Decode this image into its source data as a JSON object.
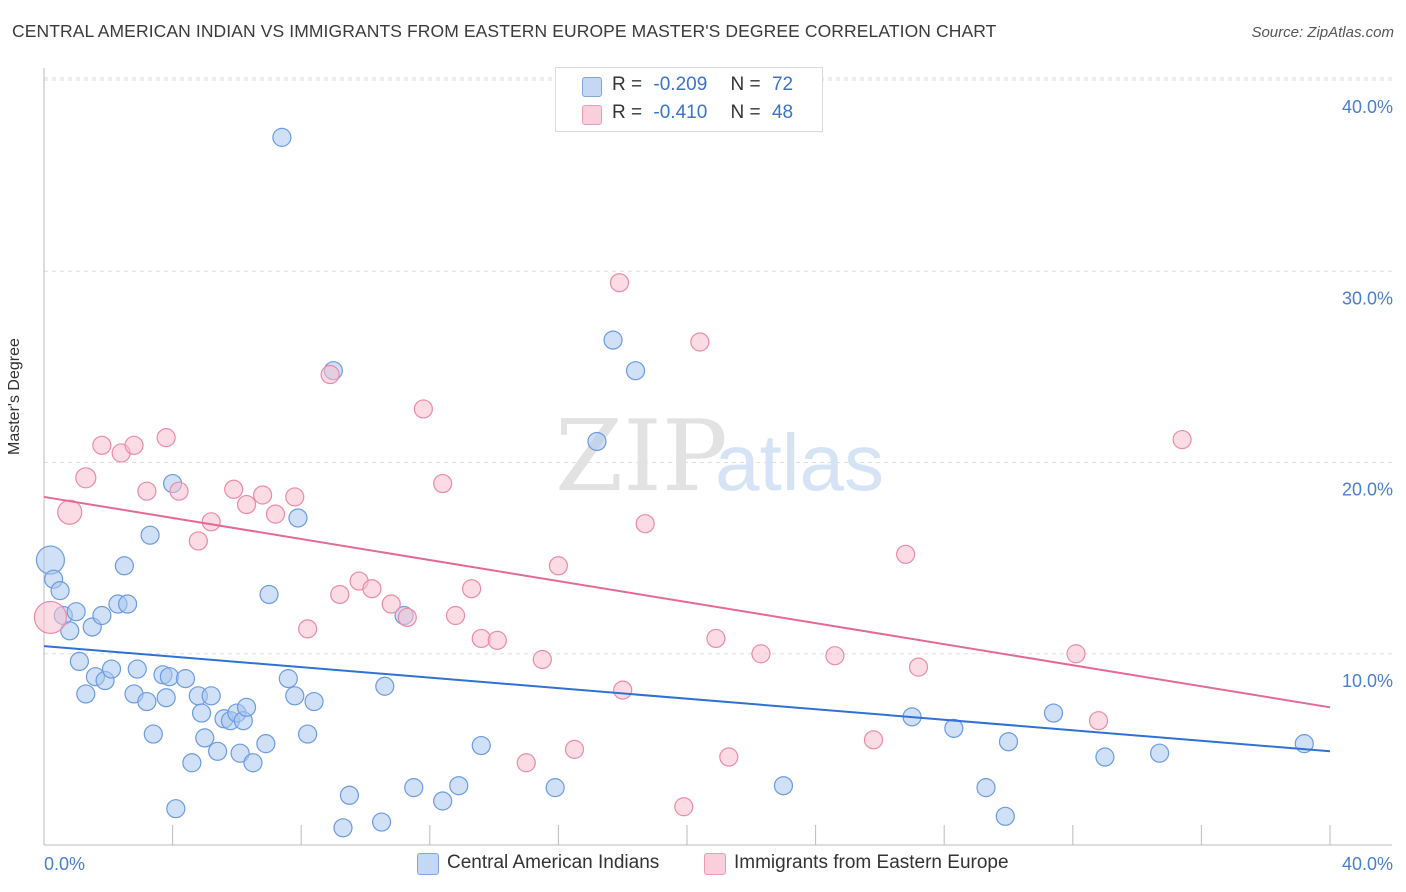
{
  "title": "CENTRAL AMERICAN INDIAN VS IMMIGRANTS FROM EASTERN EUROPE MASTER'S DEGREE CORRELATION CHART",
  "source": "Source: ZipAtlas.com",
  "watermark": {
    "zip": "ZIP",
    "atlas": "atlas"
  },
  "legend": {
    "r_label": "R =",
    "n_label": "N =",
    "rows": [
      {
        "r": "-0.209",
        "n": "72",
        "color": "#a9c7ef"
      },
      {
        "r": "-0.410",
        "n": "48",
        "color": "#f7bfd0"
      }
    ]
  },
  "bottom_legend": [
    {
      "label": "Central American Indians",
      "color": "#a9c7ef"
    },
    {
      "label": "Immigrants from Eastern Europe",
      "color": "#f7bfd0"
    }
  ],
  "colors": {
    "blue_fill": "#a9c7ef",
    "blue_stroke": "#6b9be0",
    "blue_line": "#2f72d3",
    "pink_fill": "#f7bfd0",
    "pink_stroke": "#ec8aa8",
    "pink_line": "#e46a92",
    "grid": "#dddddd",
    "axis": "#bbbbbb",
    "tick_text": "#4a7fd0"
  },
  "chart_data": {
    "type": "scatter",
    "title": "CENTRAL AMERICAN INDIAN VS IMMIGRANTS FROM EASTERN EUROPE MASTER'S DEGREE CORRELATION CHART",
    "xlabel": "",
    "ylabel": "Master's Degree",
    "xlim": [
      0,
      40
    ],
    "ylim": [
      0,
      40
    ],
    "x_tick_labels": [
      "0.0%",
      "40.0%"
    ],
    "y_ticks": [
      {
        "value": 10,
        "label": "10.0%"
      },
      {
        "value": 20,
        "label": "20.0%"
      },
      {
        "value": 30,
        "label": "30.0%"
      },
      {
        "value": 40,
        "label": "40.0%"
      }
    ],
    "series": [
      {
        "name": "Central American Indians",
        "color": "#a9c7ef",
        "trend": {
          "x": [
            0,
            40
          ],
          "y": [
            10.4,
            4.9
          ]
        },
        "points": [
          [
            0.2,
            14.9,
            28
          ],
          [
            0.3,
            13.9,
            18
          ],
          [
            0.5,
            13.3,
            18
          ],
          [
            0.6,
            12.0,
            18
          ],
          [
            0.8,
            11.2,
            18
          ],
          [
            1.0,
            12.2,
            18
          ],
          [
            1.1,
            9.6,
            18
          ],
          [
            1.3,
            7.9,
            18
          ],
          [
            1.5,
            11.4,
            18
          ],
          [
            1.6,
            8.8,
            18
          ],
          [
            1.8,
            12.0,
            18
          ],
          [
            1.9,
            8.6,
            18
          ],
          [
            2.1,
            9.2,
            18
          ],
          [
            2.3,
            12.6,
            18
          ],
          [
            2.5,
            14.6,
            18
          ],
          [
            2.6,
            12.6,
            18
          ],
          [
            2.8,
            7.9,
            18
          ],
          [
            2.9,
            9.2,
            18
          ],
          [
            3.2,
            7.5,
            18
          ],
          [
            3.3,
            16.2,
            18
          ],
          [
            3.4,
            5.8,
            18
          ],
          [
            3.7,
            8.9,
            18
          ],
          [
            3.8,
            7.7,
            18
          ],
          [
            3.9,
            8.8,
            18
          ],
          [
            4.0,
            18.9,
            18
          ],
          [
            4.1,
            1.9,
            18
          ],
          [
            4.4,
            8.7,
            18
          ],
          [
            4.6,
            4.3,
            18
          ],
          [
            4.8,
            7.8,
            18
          ],
          [
            4.9,
            6.9,
            18
          ],
          [
            5.0,
            5.6,
            18
          ],
          [
            5.2,
            7.8,
            18
          ],
          [
            5.4,
            4.9,
            18
          ],
          [
            5.6,
            6.6,
            18
          ],
          [
            5.8,
            6.5,
            18
          ],
          [
            6.0,
            6.9,
            18
          ],
          [
            6.1,
            4.8,
            18
          ],
          [
            6.2,
            6.5,
            18
          ],
          [
            6.3,
            7.2,
            18
          ],
          [
            6.5,
            4.3,
            18
          ],
          [
            6.9,
            5.3,
            18
          ],
          [
            7.0,
            13.1,
            18
          ],
          [
            7.4,
            37.0,
            18
          ],
          [
            7.6,
            8.7,
            18
          ],
          [
            7.8,
            7.8,
            18
          ],
          [
            7.9,
            17.1,
            18
          ],
          [
            8.2,
            5.8,
            18
          ],
          [
            8.4,
            7.5,
            18
          ],
          [
            9.0,
            24.8,
            18
          ],
          [
            9.3,
            0.9,
            18
          ],
          [
            9.5,
            2.6,
            18
          ],
          [
            10.5,
            1.2,
            18
          ],
          [
            10.6,
            8.3,
            18
          ],
          [
            11.2,
            12.0,
            18
          ],
          [
            11.5,
            3.0,
            18
          ],
          [
            12.4,
            2.3,
            18
          ],
          [
            12.9,
            3.1,
            18
          ],
          [
            13.6,
            5.2,
            18
          ],
          [
            15.9,
            3.0,
            18
          ],
          [
            17.2,
            21.1,
            18
          ],
          [
            17.7,
            26.4,
            18
          ],
          [
            18.4,
            24.8,
            18
          ],
          [
            23.0,
            3.1,
            18
          ],
          [
            27.0,
            6.7,
            18
          ],
          [
            28.3,
            6.1,
            18
          ],
          [
            29.3,
            3.0,
            18
          ],
          [
            29.9,
            1.5,
            18
          ],
          [
            30.0,
            5.4,
            18
          ],
          [
            31.4,
            6.9,
            18
          ],
          [
            33.0,
            4.6,
            18
          ],
          [
            34.7,
            4.8,
            18
          ],
          [
            39.2,
            5.3,
            18
          ]
        ]
      },
      {
        "name": "Immigrants from Eastern Europe",
        "color": "#f7bfd0",
        "trend": {
          "x": [
            0,
            40
          ],
          "y": [
            18.2,
            7.2
          ]
        },
        "points": [
          [
            0.2,
            11.9,
            32
          ],
          [
            0.8,
            17.4,
            24
          ],
          [
            1.3,
            19.2,
            20
          ],
          [
            1.8,
            20.9,
            18
          ],
          [
            2.4,
            20.5,
            18
          ],
          [
            2.8,
            20.9,
            18
          ],
          [
            3.2,
            18.5,
            18
          ],
          [
            3.8,
            21.3,
            18
          ],
          [
            4.2,
            18.5,
            18
          ],
          [
            4.8,
            15.9,
            18
          ],
          [
            5.2,
            16.9,
            18
          ],
          [
            5.9,
            18.6,
            18
          ],
          [
            6.3,
            17.8,
            18
          ],
          [
            6.8,
            18.3,
            18
          ],
          [
            7.2,
            17.3,
            18
          ],
          [
            7.8,
            18.2,
            18
          ],
          [
            8.2,
            11.3,
            18
          ],
          [
            8.9,
            24.6,
            18
          ],
          [
            9.2,
            13.1,
            18
          ],
          [
            9.8,
            13.8,
            18
          ],
          [
            10.2,
            13.4,
            18
          ],
          [
            10.8,
            12.6,
            18
          ],
          [
            11.3,
            11.9,
            18
          ],
          [
            11.8,
            22.8,
            18
          ],
          [
            12.4,
            18.9,
            18
          ],
          [
            12.8,
            12.0,
            18
          ],
          [
            13.3,
            13.4,
            18
          ],
          [
            13.6,
            10.8,
            18
          ],
          [
            14.1,
            10.7,
            18
          ],
          [
            15.0,
            4.3,
            18
          ],
          [
            15.5,
            9.7,
            18
          ],
          [
            16.0,
            14.6,
            18
          ],
          [
            16.5,
            5.0,
            18
          ],
          [
            17.9,
            29.4,
            18
          ],
          [
            18.0,
            8.1,
            18
          ],
          [
            18.7,
            16.8,
            18
          ],
          [
            19.9,
            2.0,
            18
          ],
          [
            20.4,
            26.3,
            18
          ],
          [
            20.9,
            10.8,
            18
          ],
          [
            21.3,
            4.6,
            18
          ],
          [
            22.3,
            10.0,
            18
          ],
          [
            24.6,
            9.9,
            18
          ],
          [
            25.8,
            5.5,
            18
          ],
          [
            26.8,
            15.2,
            18
          ],
          [
            27.2,
            9.3,
            18
          ],
          [
            32.1,
            10.0,
            18
          ],
          [
            32.8,
            6.5,
            18
          ],
          [
            35.4,
            21.2,
            18
          ]
        ]
      }
    ]
  }
}
